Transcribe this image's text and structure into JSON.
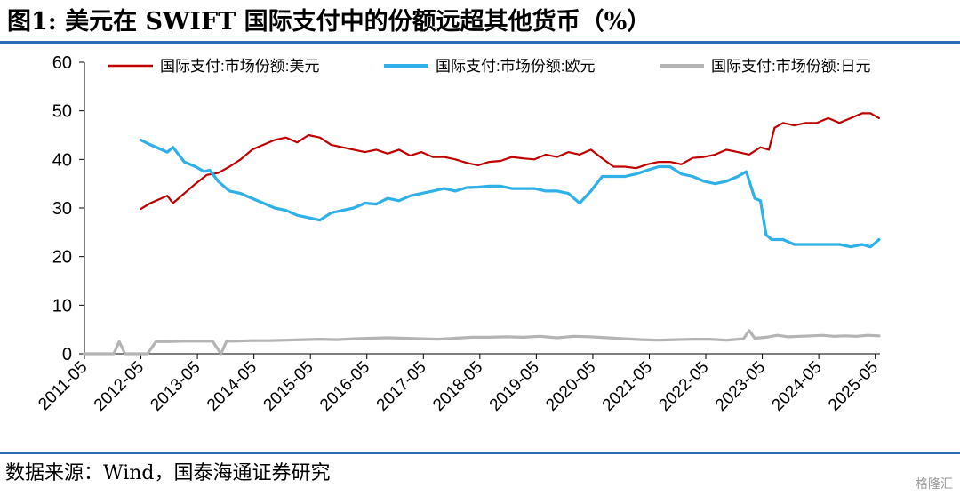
{
  "figure": {
    "title": "图1:  美元在 SWIFT 国际支付中的份额远超其他货币（%）",
    "source": "数据来源：Wind，国泰海通证券研究",
    "watermark": "格隆汇"
  },
  "colors": {
    "usd": "#c00000",
    "eur": "#2fb0e8",
    "jpy": "#b4b4b4",
    "rule": "#2b6cb5"
  },
  "chart_data": {
    "type": "line",
    "title": "美元在 SWIFT 国际支付中的份额远超其他货币（%）",
    "xlabel": "",
    "ylabel": "%",
    "ylim": [
      0,
      60
    ],
    "yticks": [
      0,
      10,
      20,
      30,
      40,
      50,
      60
    ],
    "xlim": [
      2011.333,
      2025.417
    ],
    "x_tick_labels": [
      "2011-05",
      "2012-05",
      "2013-05",
      "2014-05",
      "2015-05",
      "2016-05",
      "2017-05",
      "2018-05",
      "2019-05",
      "2020-05",
      "2021-05",
      "2022-05",
      "2023-05",
      "2024-05",
      "2025-05"
    ],
    "legend_position": "top",
    "series": [
      {
        "name": "国际支付:市场份额:美元",
        "color_key": "usd",
        "x": [
          2012.33,
          2012.5,
          2012.8,
          2012.9,
          2013.1,
          2013.3,
          2013.5,
          2013.7,
          2013.9,
          2014.1,
          2014.3,
          2014.5,
          2014.7,
          2014.9,
          2015.1,
          2015.3,
          2015.5,
          2015.7,
          2015.9,
          2016.1,
          2016.3,
          2016.5,
          2016.7,
          2016.9,
          2017.1,
          2017.3,
          2017.5,
          2017.7,
          2017.9,
          2018.1,
          2018.3,
          2018.5,
          2018.7,
          2018.9,
          2019.1,
          2019.3,
          2019.5,
          2019.7,
          2019.9,
          2020.1,
          2020.3,
          2020.5,
          2020.7,
          2020.9,
          2021.1,
          2021.3,
          2021.5,
          2021.7,
          2021.9,
          2022.1,
          2022.3,
          2022.5,
          2022.7,
          2022.9,
          2023.1,
          2023.3,
          2023.45,
          2023.55,
          2023.7,
          2023.9,
          2024.1,
          2024.3,
          2024.5,
          2024.7,
          2024.9,
          2025.1,
          2025.25,
          2025.4
        ],
        "values": [
          29.8,
          31,
          32.5,
          31,
          33,
          35,
          36.8,
          37.2,
          38.5,
          40,
          42,
          43,
          44,
          44.5,
          43.5,
          45,
          44.5,
          43,
          42.5,
          42,
          41.5,
          42,
          41.2,
          42,
          40.8,
          41.5,
          40.5,
          40.5,
          40,
          39.3,
          38.8,
          39.5,
          39.7,
          40.5,
          40.2,
          40,
          41,
          40.5,
          41.5,
          41,
          42,
          40.2,
          38.5,
          38.5,
          38.2,
          39,
          39.5,
          39.5,
          39,
          40.3,
          40.5,
          41,
          42,
          41.5,
          41,
          42.5,
          42,
          46.5,
          47.5,
          47,
          47.5,
          47.5,
          48.5,
          47.5,
          48.5,
          49.5,
          49.5,
          48.5
        ]
      },
      {
        "name": "国际支付:市场份额:欧元",
        "color_key": "eur",
        "x": [
          2012.33,
          2012.5,
          2012.8,
          2012.9,
          2013.1,
          2013.3,
          2013.45,
          2013.55,
          2013.7,
          2013.9,
          2014.1,
          2014.3,
          2014.5,
          2014.7,
          2014.9,
          2015.1,
          2015.3,
          2015.5,
          2015.7,
          2015.9,
          2016.1,
          2016.3,
          2016.5,
          2016.7,
          2016.9,
          2017.1,
          2017.3,
          2017.5,
          2017.7,
          2017.9,
          2018.1,
          2018.3,
          2018.5,
          2018.7,
          2018.9,
          2019.1,
          2019.3,
          2019.5,
          2019.7,
          2019.9,
          2020.1,
          2020.3,
          2020.5,
          2020.7,
          2020.9,
          2021.1,
          2021.3,
          2021.5,
          2021.7,
          2021.9,
          2022.1,
          2022.3,
          2022.5,
          2022.7,
          2022.9,
          2023.05,
          2023.2,
          2023.3,
          2023.4,
          2023.5,
          2023.7,
          2023.9,
          2024.1,
          2024.3,
          2024.5,
          2024.7,
          2024.9,
          2025.1,
          2025.25,
          2025.4
        ],
        "values": [
          44,
          43,
          41.5,
          42.5,
          39.5,
          38.5,
          37.5,
          37.8,
          35.5,
          33.5,
          33,
          32,
          31,
          30,
          29.5,
          28.5,
          28,
          27.5,
          29,
          29.5,
          30,
          31,
          30.8,
          32,
          31.5,
          32.5,
          33,
          33.5,
          34,
          33.5,
          34.2,
          34.3,
          34.5,
          34.5,
          34,
          34,
          34,
          33.5,
          33.5,
          33,
          31,
          33.5,
          36.5,
          36.5,
          36.5,
          37,
          37.8,
          38.5,
          38.5,
          37,
          36.5,
          35.5,
          35,
          35.5,
          36.5,
          37.5,
          32,
          31.5,
          24.5,
          23.5,
          23.5,
          22.5,
          22.5,
          22.5,
          22.5,
          22.5,
          22,
          22.5,
          22,
          23.5
        ]
      },
      {
        "name": "国际支付:市场份额:日元",
        "color_key": "jpy",
        "x": [
          2011.33,
          2011.6,
          2011.85,
          2011.95,
          2012.05,
          2012.2,
          2012.35,
          2012.45,
          2012.6,
          2012.8,
          2013.1,
          2013.4,
          2013.6,
          2013.75,
          2013.85,
          2014.0,
          2014.3,
          2014.6,
          2014.9,
          2015.2,
          2015.5,
          2015.8,
          2016.1,
          2016.4,
          2016.7,
          2017.0,
          2017.3,
          2017.6,
          2017.9,
          2018.2,
          2018.5,
          2018.8,
          2019.1,
          2019.4,
          2019.7,
          2020.0,
          2020.3,
          2020.6,
          2020.9,
          2021.2,
          2021.5,
          2021.8,
          2022.1,
          2022.4,
          2022.7,
          2023.0,
          2023.1,
          2023.2,
          2023.4,
          2023.6,
          2023.8,
          2024.0,
          2024.2,
          2024.4,
          2024.6,
          2024.8,
          2025.0,
          2025.2,
          2025.4
        ],
        "values": [
          0,
          0,
          0,
          2.5,
          0,
          0,
          0,
          0,
          2.5,
          2.5,
          2.6,
          2.6,
          2.6,
          0,
          2.6,
          2.6,
          2.7,
          2.7,
          2.8,
          2.9,
          3,
          2.9,
          3.1,
          3.2,
          3.3,
          3.2,
          3.1,
          3,
          3.2,
          3.4,
          3.4,
          3.5,
          3.4,
          3.6,
          3.3,
          3.6,
          3.5,
          3.3,
          3.1,
          2.9,
          2.8,
          2.9,
          3,
          3,
          2.8,
          3.1,
          4.8,
          3.2,
          3.4,
          3.8,
          3.5,
          3.6,
          3.7,
          3.8,
          3.6,
          3.7,
          3.6,
          3.8,
          3.7
        ]
      }
    ]
  }
}
